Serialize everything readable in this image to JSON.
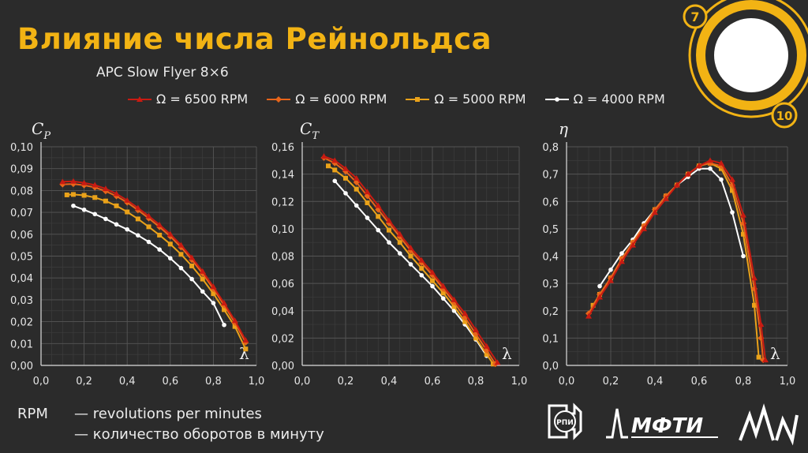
{
  "slide": {
    "title": "Влияние числа Рейнольдса",
    "subtitle": "APC Slow Flyer 8×6",
    "page_badges": [
      "7",
      "10"
    ]
  },
  "footer": {
    "abbr": "RPM",
    "lines": [
      "— revolutions per minutes",
      "— количество оборотов в минуту"
    ]
  },
  "logos": [
    "РПИ",
    "МФТИ",
    "СКАТ"
  ],
  "colors": {
    "background": "#2b2b2b",
    "title": "#f2b314",
    "grid": "#4a4a4a",
    "s6500": "#c91b12",
    "s6000": "#e8651a",
    "s5000": "#eaa21a",
    "s4000": "#ffffff"
  },
  "legend": [
    {
      "name": "Ω = 6500 RPM",
      "color": "#c91b12",
      "marker": "triangle"
    },
    {
      "name": "Ω = 6000 RPM",
      "color": "#e8651a",
      "marker": "diamond"
    },
    {
      "name": "Ω = 5000 RPM",
      "color": "#eaa21a",
      "marker": "square"
    },
    {
      "name": "Ω = 4000 RPM",
      "color": "#ffffff",
      "marker": "circle"
    }
  ],
  "chart_data": [
    {
      "type": "line",
      "ylabel": "C_P",
      "xlabel": "λ",
      "xlim": [
        0,
        1.0
      ],
      "ylim": [
        0,
        0.1
      ],
      "xticks": [
        "0,0",
        "0,2",
        "0,4",
        "0,6",
        "0,8",
        "1,0"
      ],
      "yticks": [
        "0,00",
        "0,01",
        "0,02",
        "0,03",
        "0,04",
        "0,05",
        "0,06",
        "0,07",
        "0,08",
        "0,09",
        "0,10"
      ],
      "grid": true,
      "series": [
        {
          "name": "Ω = 6500 RPM",
          "x": [
            0.1,
            0.15,
            0.2,
            0.25,
            0.3,
            0.35,
            0.4,
            0.45,
            0.5,
            0.55,
            0.6,
            0.65,
            0.7,
            0.75,
            0.8,
            0.85,
            0.9,
            0.95
          ],
          "y": [
            0.084,
            0.0842,
            0.0835,
            0.0825,
            0.0808,
            0.0785,
            0.0755,
            0.072,
            0.0683,
            0.0643,
            0.06,
            0.055,
            0.0493,
            0.043,
            0.036,
            0.0285,
            0.0205,
            0.0115
          ]
        },
        {
          "name": "Ω = 6000 RPM",
          "x": [
            0.1,
            0.15,
            0.2,
            0.25,
            0.3,
            0.35,
            0.4,
            0.45,
            0.5,
            0.55,
            0.6,
            0.65,
            0.7,
            0.75,
            0.8,
            0.85,
            0.9,
            0.95
          ],
          "y": [
            0.0828,
            0.083,
            0.0824,
            0.0814,
            0.0797,
            0.0774,
            0.0745,
            0.071,
            0.0673,
            0.0633,
            0.059,
            0.054,
            0.0483,
            0.042,
            0.035,
            0.0275,
            0.0195,
            0.0105
          ]
        },
        {
          "name": "Ω = 5000 RPM",
          "x": [
            0.12,
            0.15,
            0.2,
            0.25,
            0.3,
            0.35,
            0.4,
            0.45,
            0.5,
            0.55,
            0.6,
            0.65,
            0.7,
            0.75,
            0.8,
            0.85,
            0.9,
            0.95
          ],
          "y": [
            0.078,
            0.0782,
            0.0778,
            0.0768,
            0.0752,
            0.073,
            0.0702,
            0.067,
            0.0634,
            0.0596,
            0.0555,
            0.0508,
            0.0455,
            0.0395,
            0.0328,
            0.0255,
            0.0178,
            0.0075
          ]
        },
        {
          "name": "Ω = 4000 RPM",
          "x": [
            0.15,
            0.2,
            0.25,
            0.3,
            0.35,
            0.4,
            0.45,
            0.5,
            0.55,
            0.6,
            0.65,
            0.7,
            0.75,
            0.8,
            0.85
          ],
          "y": [
            0.073,
            0.0712,
            0.0692,
            0.067,
            0.0645,
            0.0622,
            0.0595,
            0.0565,
            0.053,
            0.049,
            0.0445,
            0.0395,
            0.0338,
            0.0285,
            0.0185
          ]
        }
      ]
    },
    {
      "type": "line",
      "ylabel": "C_T",
      "xlabel": "λ",
      "xlim": [
        0,
        1.0
      ],
      "ylim": [
        0,
        0.16
      ],
      "xticks": [
        "0,0",
        "0,2",
        "0,4",
        "0,6",
        "0,8",
        "1,0"
      ],
      "yticks": [
        "0,00",
        "0,02",
        "0,04",
        "0,06",
        "0,08",
        "0,10",
        "0,12",
        "0,14",
        "0,16"
      ],
      "grid": true,
      "series": [
        {
          "name": "Ω = 6500 RPM",
          "x": [
            0.1,
            0.15,
            0.2,
            0.25,
            0.3,
            0.35,
            0.4,
            0.45,
            0.5,
            0.55,
            0.6,
            0.65,
            0.7,
            0.75,
            0.8,
            0.85,
            0.9
          ],
          "y": [
            0.153,
            0.15,
            0.144,
            0.137,
            0.127,
            0.117,
            0.106,
            0.096,
            0.086,
            0.077,
            0.068,
            0.058,
            0.048,
            0.038,
            0.026,
            0.014,
            0.002
          ]
        },
        {
          "name": "Ω = 6000 RPM",
          "x": [
            0.1,
            0.15,
            0.2,
            0.25,
            0.3,
            0.35,
            0.4,
            0.45,
            0.5,
            0.55,
            0.6,
            0.65,
            0.7,
            0.75,
            0.8,
            0.85,
            0.89
          ],
          "y": [
            0.152,
            0.148,
            0.142,
            0.134,
            0.124,
            0.114,
            0.104,
            0.094,
            0.084,
            0.075,
            0.066,
            0.056,
            0.046,
            0.035,
            0.023,
            0.011,
            0.001
          ]
        },
        {
          "name": "Ω = 5000 RPM",
          "x": [
            0.12,
            0.15,
            0.2,
            0.25,
            0.3,
            0.35,
            0.4,
            0.45,
            0.5,
            0.55,
            0.6,
            0.65,
            0.7,
            0.75,
            0.8,
            0.85,
            0.88
          ],
          "y": [
            0.146,
            0.143,
            0.137,
            0.129,
            0.119,
            0.109,
            0.099,
            0.09,
            0.08,
            0.071,
            0.062,
            0.053,
            0.043,
            0.032,
            0.02,
            0.008,
            0.001
          ]
        },
        {
          "name": "Ω = 4000 RPM",
          "x": [
            0.15,
            0.2,
            0.25,
            0.3,
            0.35,
            0.4,
            0.45,
            0.5,
            0.55,
            0.6,
            0.65,
            0.7,
            0.75,
            0.8,
            0.85
          ],
          "y": [
            0.135,
            0.126,
            0.117,
            0.108,
            0.099,
            0.09,
            0.082,
            0.074,
            0.066,
            0.058,
            0.049,
            0.04,
            0.03,
            0.019,
            0.007
          ]
        }
      ]
    },
    {
      "type": "line",
      "ylabel": "η",
      "xlabel": "λ",
      "xlim": [
        0,
        1.0
      ],
      "ylim": [
        0,
        0.8
      ],
      "xticks": [
        "0,0",
        "0,2",
        "0,4",
        "0,6",
        "0,8",
        "1,0"
      ],
      "yticks": [
        "0,0",
        "0,1",
        "0,2",
        "0,3",
        "0,4",
        "0,5",
        "0,6",
        "0,7",
        "0,8"
      ],
      "grid": true,
      "series": [
        {
          "name": "Ω = 6500 RPM",
          "x": [
            0.1,
            0.15,
            0.2,
            0.25,
            0.3,
            0.35,
            0.4,
            0.45,
            0.5,
            0.55,
            0.6,
            0.65,
            0.7,
            0.75,
            0.8,
            0.85,
            0.88,
            0.9
          ],
          "y": [
            0.18,
            0.25,
            0.31,
            0.38,
            0.44,
            0.5,
            0.56,
            0.61,
            0.66,
            0.7,
            0.73,
            0.75,
            0.74,
            0.68,
            0.55,
            0.32,
            0.15,
            0.02
          ]
        },
        {
          "name": "Ω = 6000 RPM",
          "x": [
            0.1,
            0.15,
            0.2,
            0.25,
            0.3,
            0.35,
            0.4,
            0.45,
            0.5,
            0.55,
            0.6,
            0.65,
            0.7,
            0.75,
            0.8,
            0.85,
            0.88,
            0.89
          ],
          "y": [
            0.19,
            0.26,
            0.32,
            0.39,
            0.45,
            0.51,
            0.57,
            0.62,
            0.66,
            0.7,
            0.73,
            0.74,
            0.73,
            0.66,
            0.52,
            0.28,
            0.1,
            0.02
          ]
        },
        {
          "name": "Ω = 5000 RPM",
          "x": [
            0.12,
            0.15,
            0.2,
            0.25,
            0.3,
            0.35,
            0.4,
            0.45,
            0.5,
            0.55,
            0.6,
            0.65,
            0.7,
            0.75,
            0.8,
            0.85,
            0.87
          ],
          "y": [
            0.22,
            0.26,
            0.32,
            0.39,
            0.45,
            0.51,
            0.57,
            0.62,
            0.66,
            0.7,
            0.73,
            0.74,
            0.72,
            0.64,
            0.48,
            0.22,
            0.03
          ]
        },
        {
          "name": "Ω = 4000 RPM",
          "x": [
            0.15,
            0.2,
            0.25,
            0.3,
            0.35,
            0.4,
            0.45,
            0.5,
            0.55,
            0.6,
            0.65,
            0.7,
            0.75,
            0.8
          ],
          "y": [
            0.29,
            0.35,
            0.41,
            0.46,
            0.52,
            0.57,
            0.62,
            0.66,
            0.69,
            0.72,
            0.72,
            0.68,
            0.56,
            0.4
          ]
        }
      ]
    }
  ]
}
